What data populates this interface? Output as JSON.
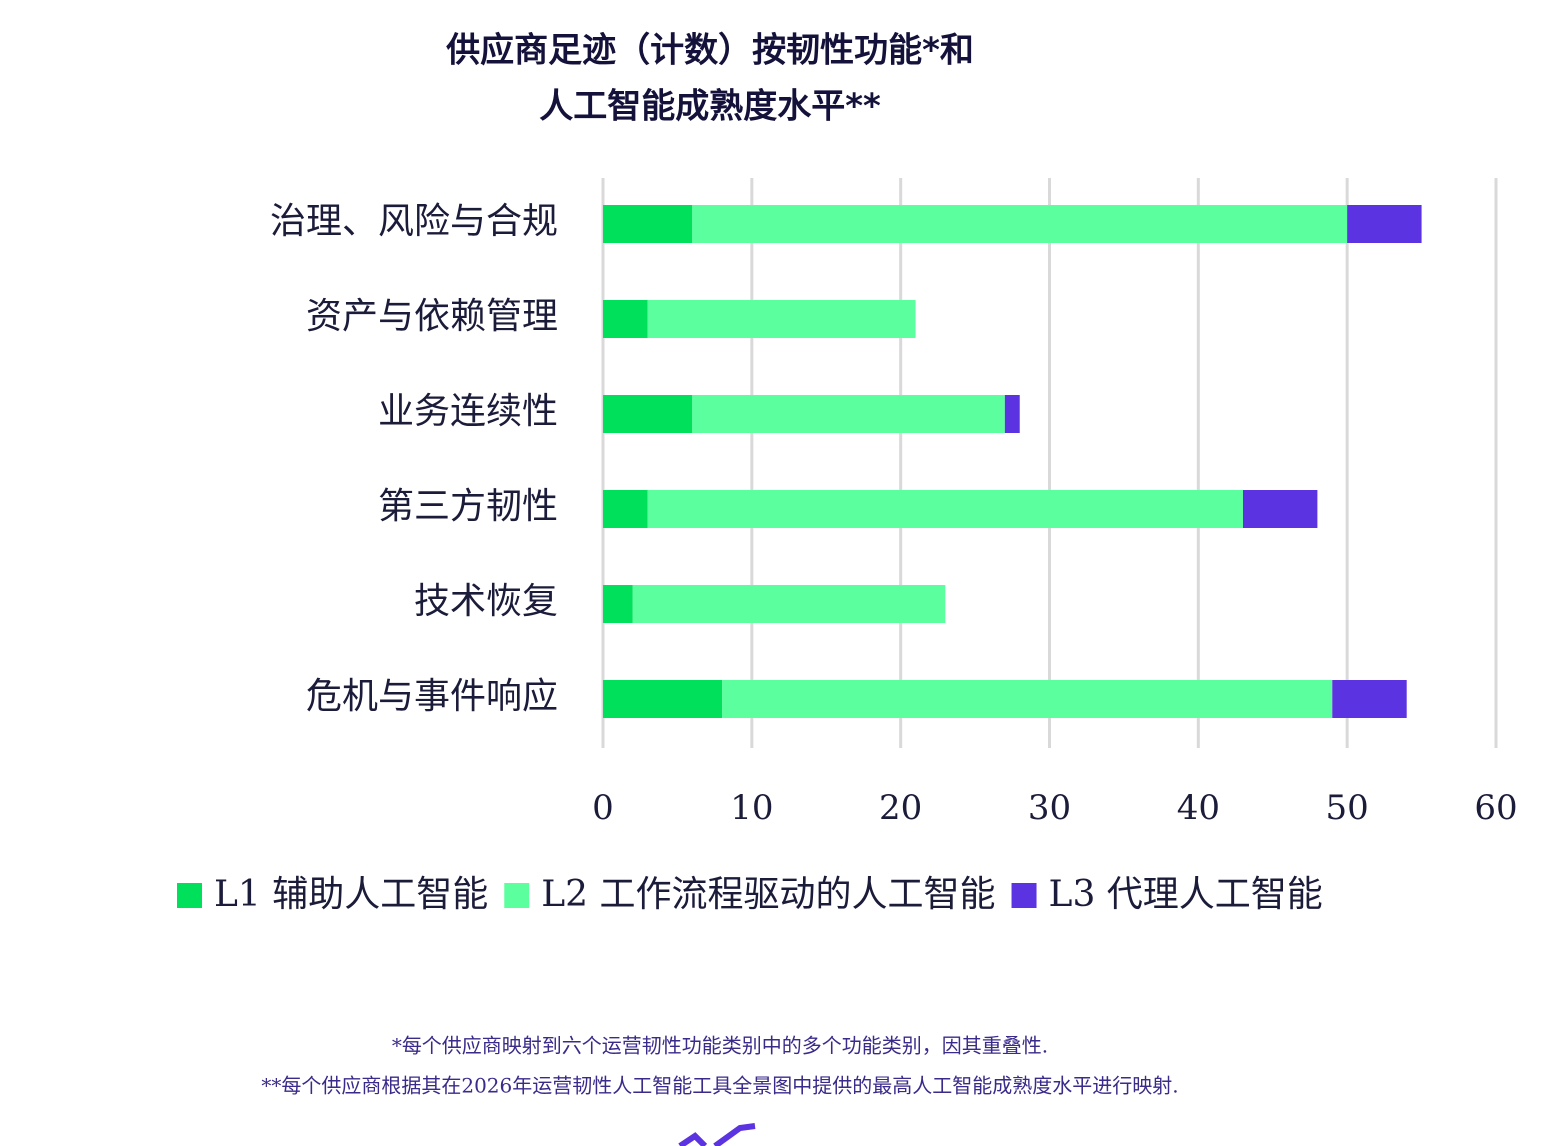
{
  "chart_data": {
    "type": "stacked_bar_horizontal",
    "title": [
      "供应商足迹（计数）按韧性功能*和",
      "人工智能成熟度水平**"
    ],
    "categories": [
      "治理、风险与合规",
      "资产与依赖管理",
      "业务连续性",
      "第三方韧性",
      "技术恢复",
      "危机与事件响应"
    ],
    "series": [
      {
        "name": "L1 辅助人工智能",
        "color": "#00e05a",
        "values": [
          6,
          3,
          6,
          3,
          2,
          8
        ]
      },
      {
        "name": "L2 工作流程驱动的人工智能",
        "color": "#5cff9d",
        "values": [
          44,
          18,
          21,
          40,
          21,
          41
        ]
      },
      {
        "name": "L3 代理人工智能",
        "color": "#5c33e0",
        "values": [
          5,
          0,
          1,
          5,
          0,
          5
        ]
      }
    ],
    "xlim": [
      0,
      60
    ],
    "xticks": [
      0,
      10,
      20,
      30,
      40,
      50,
      60
    ],
    "grid": true,
    "legend": "bottom",
    "notes": [
      "*每个供应商映射到六个运营韧性功能类别中的多个功能类别，因其重叠性.",
      "**每个供应商根据其在2026年运营韧性人工智能工具全景图中提供的最高人工智能成熟度水平进行映射."
    ]
  }
}
